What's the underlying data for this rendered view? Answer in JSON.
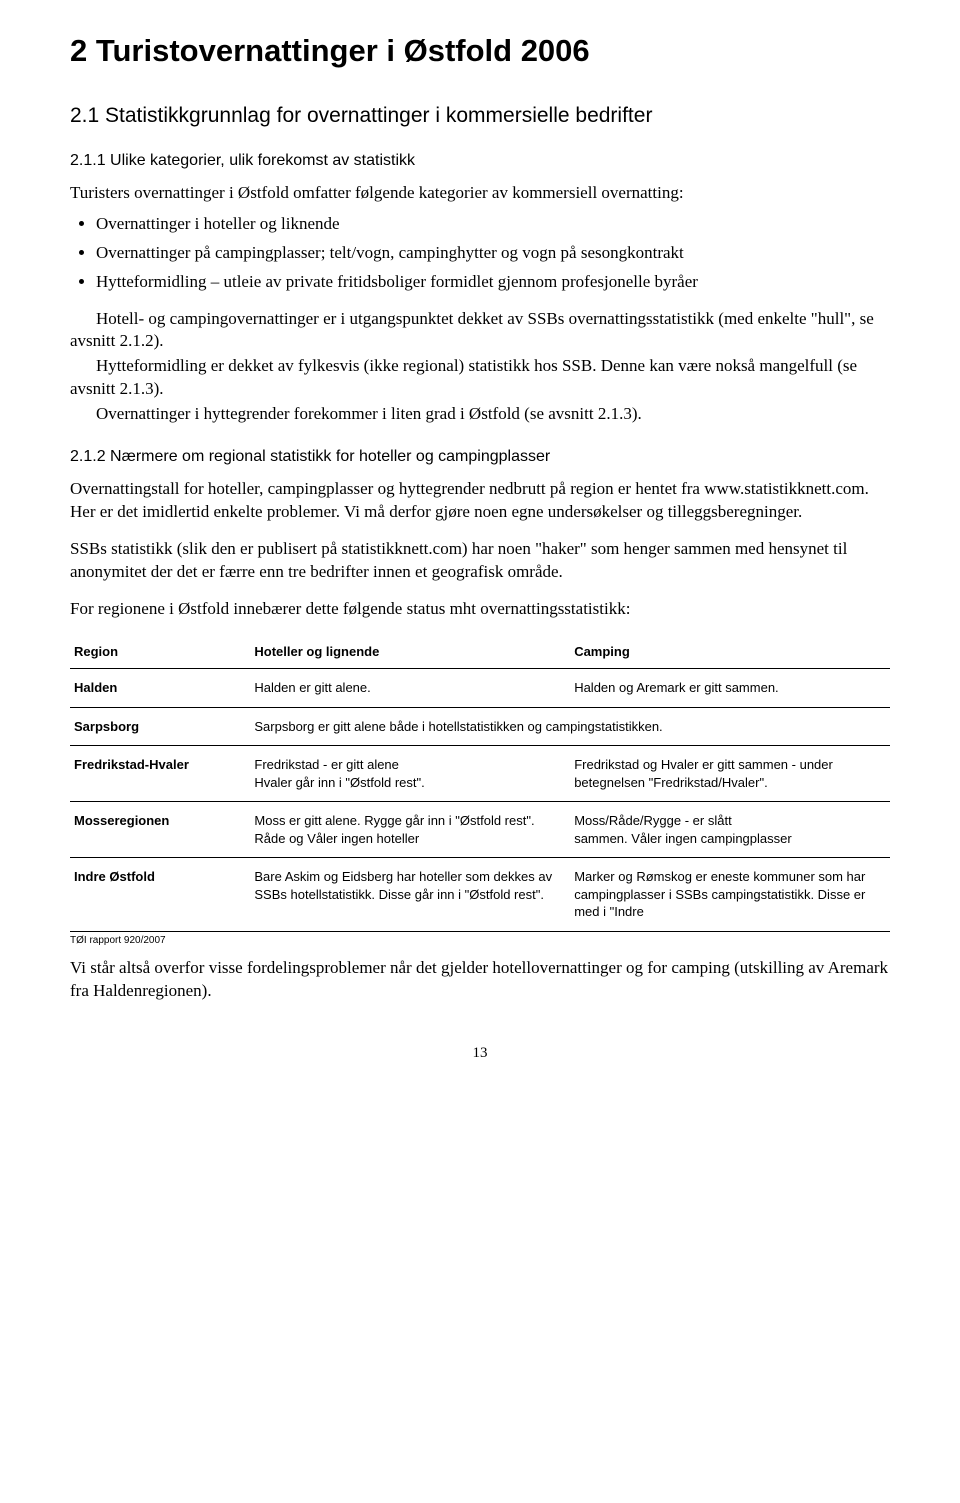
{
  "chapter_title": "2 Turistovernattinger i Østfold 2006",
  "section_title": "2.1 Statistikkgrunnlag for overnattinger i kommersielle bedrifter",
  "subsection_1_title": "2.1.1 Ulike kategorier, ulik forekomst av statistikk",
  "intro_line": "Turisters overnattinger i Østfold omfatter følgende kategorier av kommersiell overnatting:",
  "bullets": [
    "Overnattinger i hoteller og liknende",
    "Overnattinger på campingplasser; telt/vogn, campinghytter og vogn på sesongkontrakt",
    "Hytteformidling – utleie av private fritidsboliger formidlet gjennom profesjonelle byråer"
  ],
  "para_1a": "Hotell- og campingovernattinger er i utgangspunktet dekket av SSBs overnattingsstatistikk (med enkelte \"hull\", se avsnitt 2.1.2).",
  "para_1b": "Hytteformidling er dekket av fylkesvis (ikke regional) statistikk hos SSB. Denne kan være nokså mangelfull (se avsnitt 2.1.3).",
  "para_1c": "Overnattinger i hyttegrender forekommer i liten grad i Østfold (se avsnitt 2.1.3).",
  "subsection_2_title": "2.1.2 Nærmere om regional statistikk for hoteller og campingplasser",
  "para_2": "Overnattingstall for hoteller, campingplasser og hyttegrender nedbrutt på region er hentet fra www.statistikknett.com. Her er det imidlertid enkelte problemer. Vi må derfor gjøre noen egne undersøkelser og tilleggsberegninger.",
  "para_3": "SSBs statistikk (slik den er publisert på statistikknett.com) har noen \"haker\" som henger sammen med hensynet til anonymitet der det er færre enn tre bedrifter innen et geografisk område.",
  "para_4": "For regionene i Østfold innebærer dette følgende status mht overnattingsstatistikk:",
  "table": {
    "headers": [
      "Region",
      "Hoteller og lignende",
      "Camping"
    ],
    "rows": [
      {
        "region": "Halden",
        "hotels": "Halden  er gitt alene.",
        "camping": "Halden og Aremark er gitt sammen.",
        "span": false
      },
      {
        "region": "Sarpsborg",
        "hotels": "Sarpsborg er gitt alene både i hotellstatistikken og campingstatistikken.",
        "camping": "",
        "span": true
      },
      {
        "region": "Fredrikstad-Hvaler",
        "hotels": "Fredrikstad - er gitt alene\nHvaler går inn i \"Østfold rest\".",
        "camping": "Fredrikstad og Hvaler er gitt sammen - under betegnelsen \"Fredrikstad/Hvaler\".",
        "span": false
      },
      {
        "region": "Mosseregionen",
        "hotels": "Moss  er gitt alene. Rygge går inn i \"Østfold rest\". Råde og Våler ingen hoteller",
        "camping": "Moss/Råde/Rygge - er slått\nsammen. Våler ingen campingplasser",
        "span": false
      },
      {
        "region": "Indre Østfold",
        "hotels": "Bare Askim og Eidsberg har hoteller som dekkes av SSBs hotellstatistikk. Disse går inn i \"Østfold rest\".",
        "camping": "Marker og Rømskog er eneste kommuner som har campingplasser i SSBs campingstatistikk. Disse er med i \"Indre",
        "span": false
      }
    ]
  },
  "source_note": "TØI rapport 920/2007",
  "para_5": "Vi står altså overfor visse fordelingsproblemer når det gjelder hotellovernattinger og for camping (utskilling av Aremark fra Haldenregionen).",
  "page_number": "13"
}
